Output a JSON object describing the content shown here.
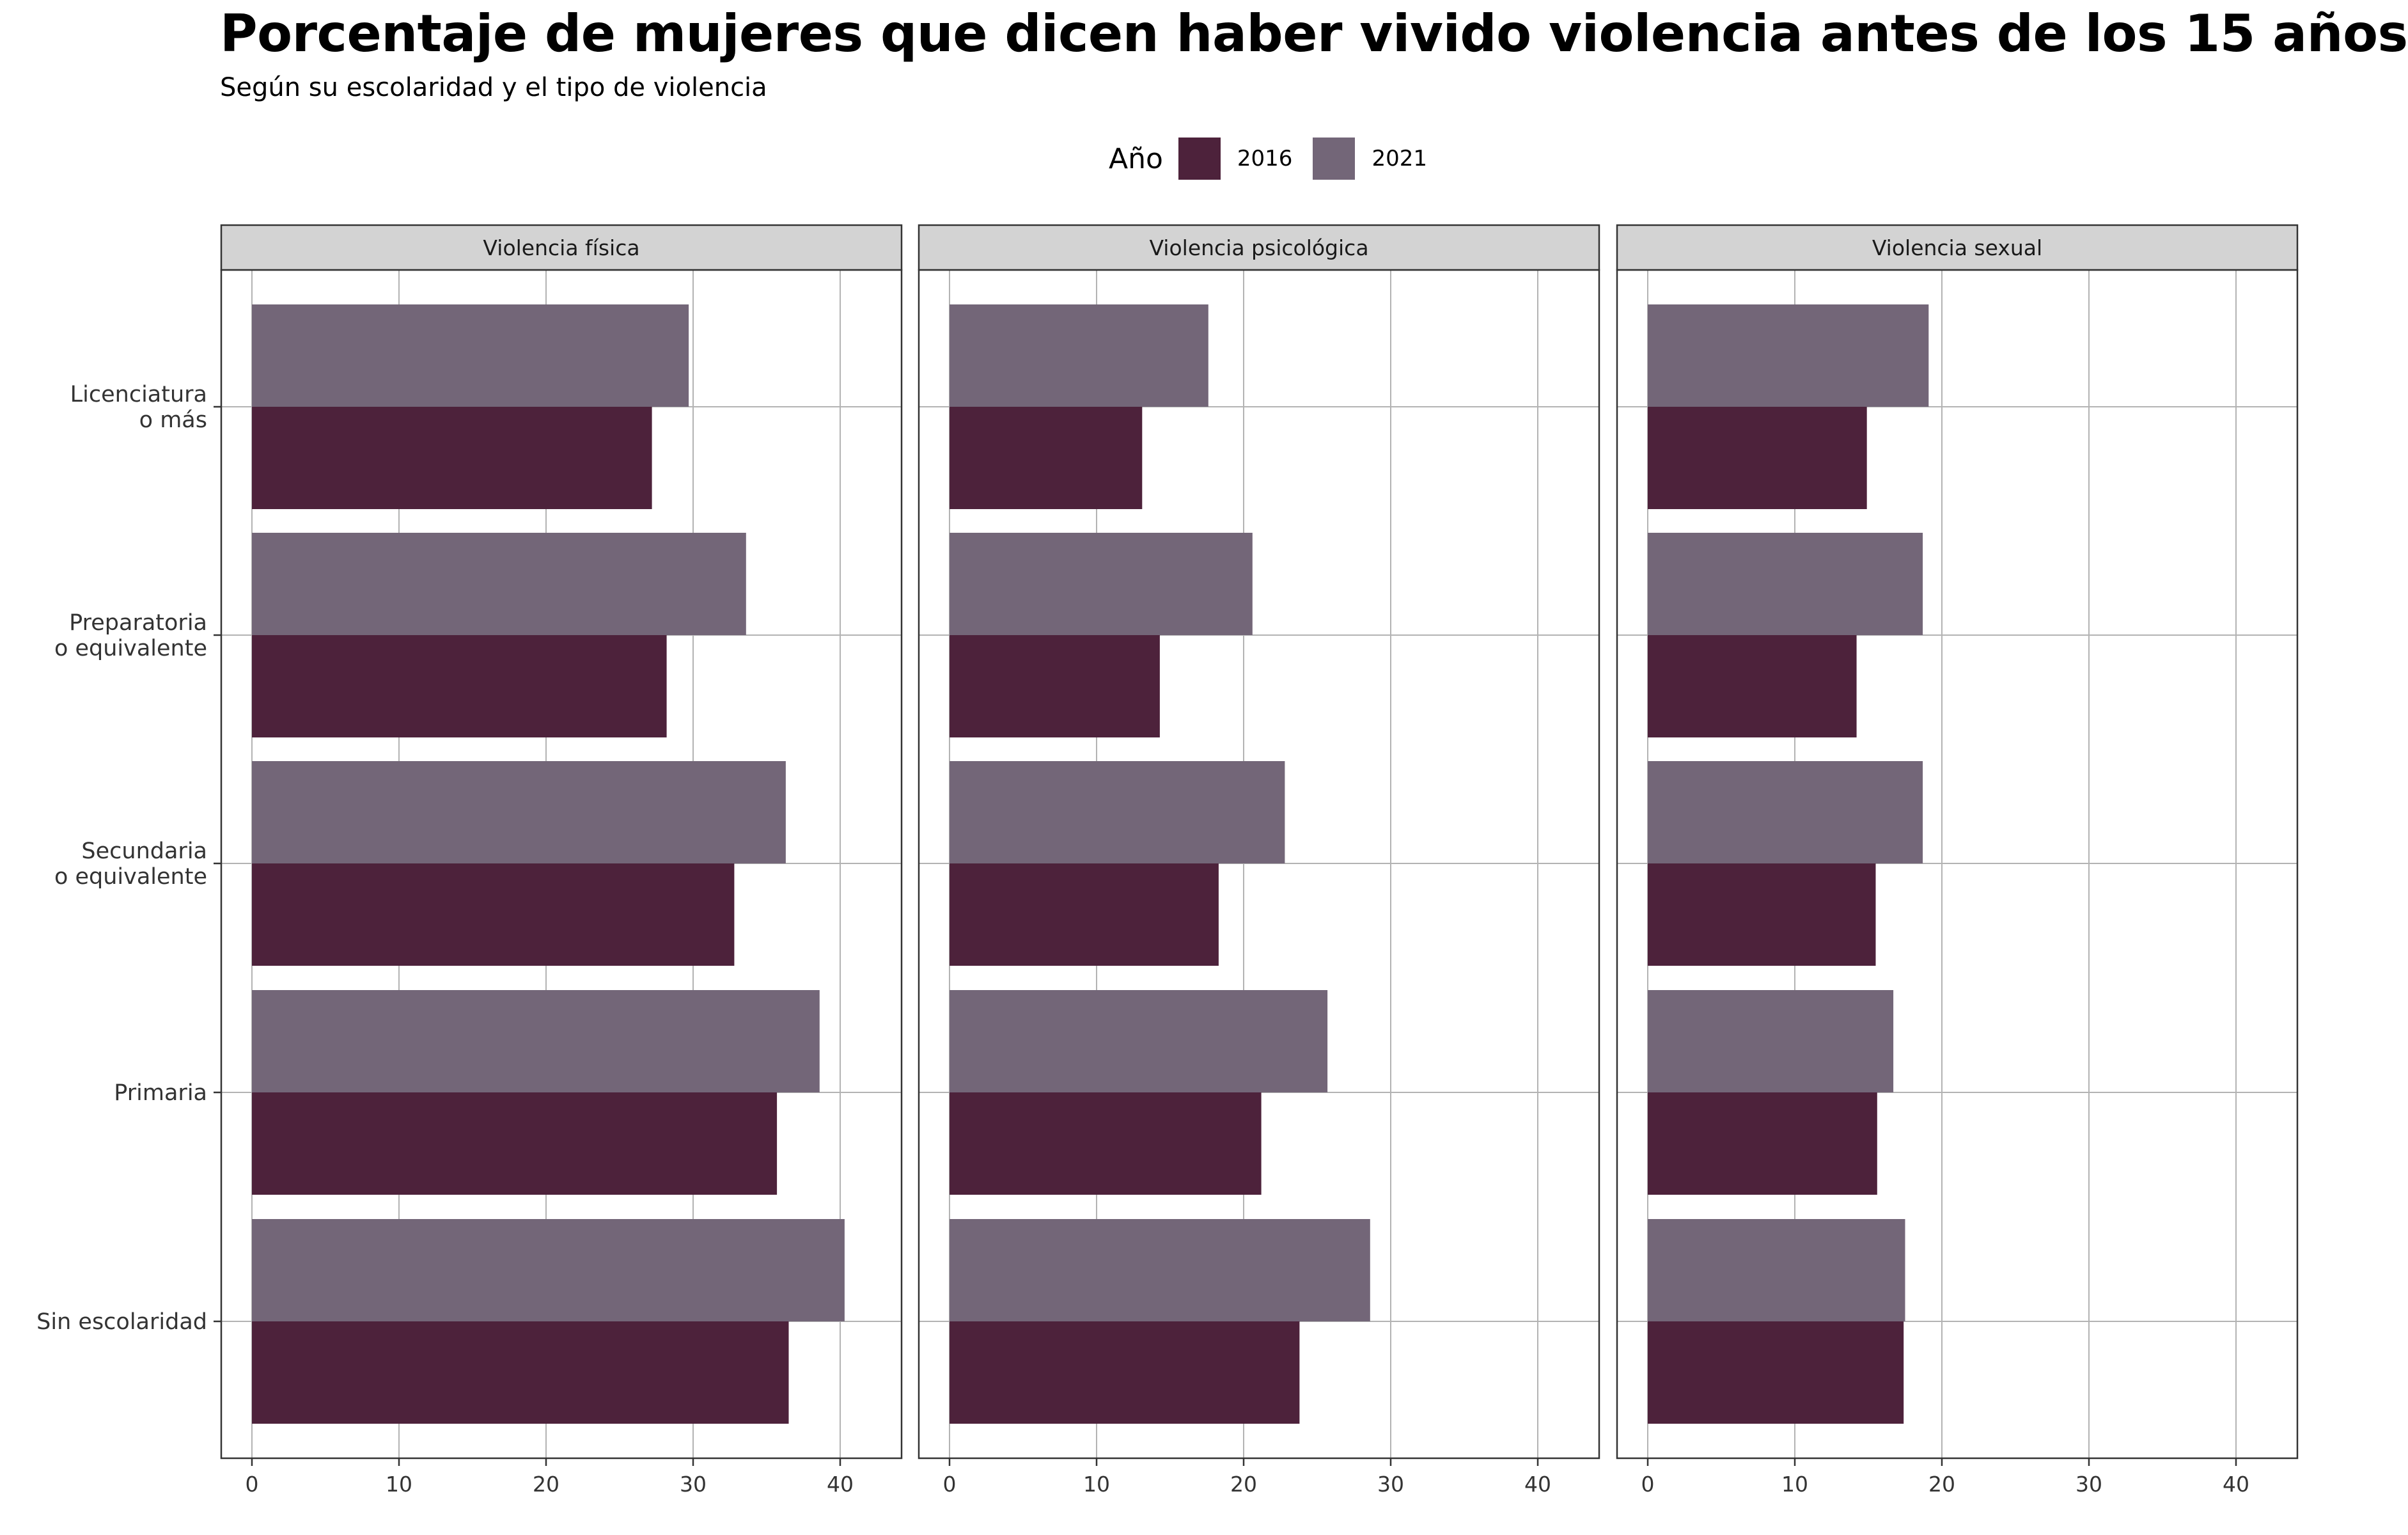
{
  "title": "Porcentaje de mujeres que dicen haber vivido violencia antes de los 15 años",
  "subtitle": "Según su escolaridad y el tipo de violencia",
  "legend": {
    "title": "Año",
    "items": [
      {
        "label": "2016",
        "color": "#4d223b"
      },
      {
        "label": "2021",
        "color": "#736678"
      }
    ]
  },
  "chart_data": {
    "type": "bar",
    "orientation": "horizontal",
    "categories": [
      "Licenciatura\no más",
      "Preparatoria\no equivalente",
      "Secundaria\no equivalente",
      "Primaria",
      "Sin escolaridad"
    ],
    "xlim": [
      0,
      42
    ],
    "xticks": [
      "0",
      "10",
      "20",
      "30",
      "40"
    ],
    "grid": true,
    "legend_position": "top",
    "colors": {
      "2016": "#4d223b",
      "2021": "#736678",
      "strip": "#d3d3d3",
      "grid": "#b3b3b3"
    },
    "panels": [
      {
        "title": "Violencia física",
        "series": [
          {
            "name": "2016",
            "values": [
              27.2,
              28.2,
              32.8,
              35.7,
              36.5
            ]
          },
          {
            "name": "2021",
            "values": [
              29.7,
              33.6,
              36.3,
              38.6,
              40.3
            ]
          }
        ]
      },
      {
        "title": "Violencia psicológica",
        "series": [
          {
            "name": "2016",
            "values": [
              13.1,
              14.3,
              18.3,
              21.2,
              23.8
            ]
          },
          {
            "name": "2021",
            "values": [
              17.6,
              20.6,
              22.8,
              25.7,
              28.6
            ]
          }
        ]
      },
      {
        "title": "Violencia sexual",
        "series": [
          {
            "name": "2016",
            "values": [
              14.9,
              14.2,
              15.5,
              15.6,
              17.4
            ]
          },
          {
            "name": "2021",
            "values": [
              19.1,
              18.7,
              18.7,
              16.7,
              17.5
            ]
          }
        ]
      }
    ]
  }
}
